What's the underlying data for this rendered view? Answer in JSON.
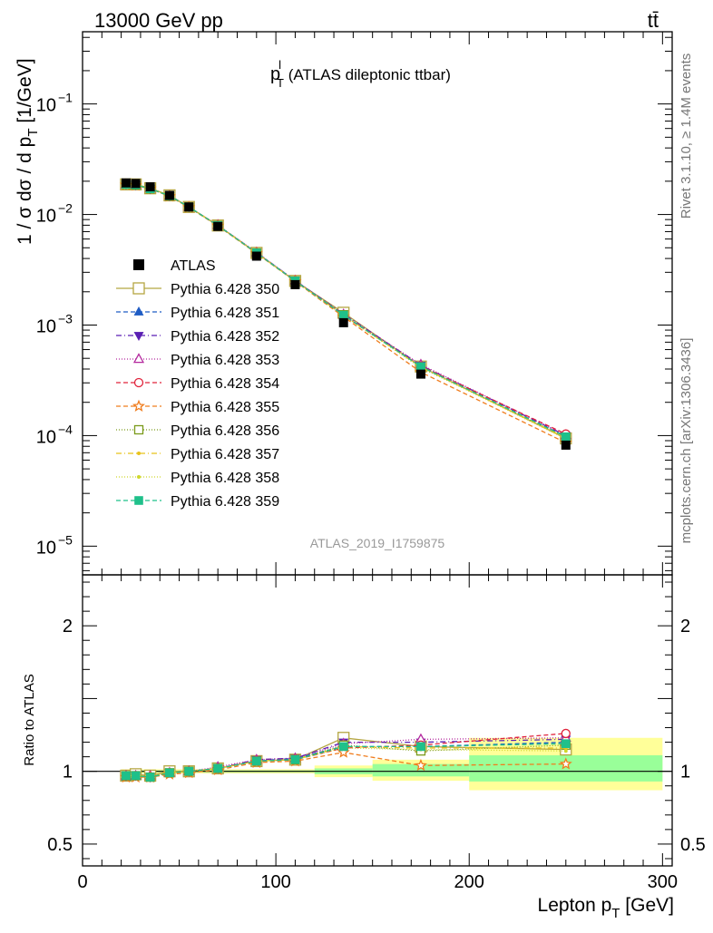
{
  "header": {
    "left": "13000 GeV pp",
    "right": "tt̄"
  },
  "side_labels": {
    "rivet": "Rivet 3.1.10, ≥ 1.4M events",
    "mcplots": "mcplots.cern.ch [arXiv:1306.3436]"
  },
  "plot_title": {
    "main": "p",
    "sup": "l",
    "sub": "T",
    "rest": " (ATLAS dileptonic ttbar)"
  },
  "watermark": "ATLAS_2019_I1759875",
  "axes": {
    "ylabel_main": "1 / σ  dσ / d p",
    "ylabel_sub": "T",
    "ylabel_unit": " [1/GeV]",
    "ylabel_ratio": "Ratio to ATLAS",
    "xlabel_main": "Lepton p",
    "xlabel_sub": "T",
    "xlabel_unit": " [GeV]"
  },
  "colors": {
    "data": "#000000",
    "band_inner": "#99ff99",
    "band_outer": "#ffff99"
  },
  "chart_data": [
    {
      "type": "line",
      "scale": "log",
      "x": [
        22.5,
        27.5,
        35,
        45,
        55,
        70,
        90,
        110,
        135,
        175,
        250
      ],
      "xlim": [
        0,
        305
      ],
      "ylim": [
        5.5e-06,
        0.45
      ],
      "x_ticks": [
        0,
        100,
        200,
        300
      ],
      "y_ticks": [
        {
          "value": 0.1,
          "base": "10",
          "exp": "−1"
        },
        {
          "value": 0.01,
          "base": "10",
          "exp": "−2"
        },
        {
          "value": 0.001,
          "base": "10",
          "exp": "−3"
        },
        {
          "value": 0.0001,
          "base": "10",
          "exp": "−4"
        },
        {
          "value": 1e-05,
          "base": "10",
          "exp": "−5"
        }
      ],
      "data": {
        "name": "ATLAS",
        "values": [
          0.0193,
          0.0191,
          0.0178,
          0.0149,
          0.0117,
          0.0078,
          0.0042,
          0.00232,
          0.00105,
          0.00036,
          8.2e-05
        ]
      },
      "series": [
        {
          "name": "Pythia 6.428 350",
          "color": "#b5a642",
          "dash": "",
          "marker": "open-square",
          "ratio": [
            0.97,
            0.98,
            0.97,
            1.0,
            1.0,
            1.02,
            1.07,
            1.08,
            1.23,
            1.17,
            1.15
          ]
        },
        {
          "name": "Pythia 6.428 351",
          "color": "#1f5cc4",
          "dash": "5,3",
          "marker": "triangle-up",
          "ratio": [
            0.96,
            0.97,
            0.96,
            0.99,
            1.0,
            1.02,
            1.07,
            1.09,
            1.17,
            1.17,
            1.2
          ]
        },
        {
          "name": "Pythia 6.428 352",
          "color": "#5a1fb3",
          "dash": "6,3,1,3",
          "marker": "triangle-down",
          "ratio": [
            0.97,
            0.97,
            0.96,
            0.99,
            1.0,
            1.02,
            1.08,
            1.09,
            1.2,
            1.2,
            1.22
          ]
        },
        {
          "name": "Pythia 6.428 353",
          "color": "#b4289e",
          "dash": "1,2",
          "marker": "open-triangle-up",
          "ratio": [
            0.97,
            0.97,
            0.97,
            0.99,
            1.0,
            1.03,
            1.08,
            1.09,
            1.19,
            1.22,
            1.23
          ]
        },
        {
          "name": "Pythia 6.428 354",
          "color": "#e0233b",
          "dash": "5,3",
          "marker": "open-circle",
          "ratio": [
            0.97,
            0.97,
            0.96,
            0.99,
            1.0,
            1.02,
            1.07,
            1.08,
            1.16,
            1.18,
            1.26
          ]
        },
        {
          "name": "Pythia 6.428 355",
          "color": "#f07d1e",
          "dash": "5,3",
          "marker": "open-star",
          "ratio": [
            0.96,
            0.96,
            0.96,
            0.98,
            0.99,
            1.01,
            1.06,
            1.07,
            1.13,
            1.04,
            1.05
          ]
        },
        {
          "name": "Pythia 6.428 356",
          "color": "#7a9a1a",
          "dash": "1,2",
          "marker": "open-square",
          "ratio": [
            0.97,
            0.97,
            0.96,
            0.99,
            1.0,
            1.02,
            1.07,
            1.08,
            1.18,
            1.14,
            1.18
          ]
        },
        {
          "name": "Pythia 6.428 357",
          "color": "#e8c21a",
          "dash": "6,3,1,3",
          "marker": "dot",
          "ratio": [
            0.97,
            0.97,
            0.97,
            0.99,
            1.0,
            1.02,
            1.07,
            1.08,
            1.17,
            1.16,
            1.16
          ]
        },
        {
          "name": "Pythia 6.428 358",
          "color": "#cfd82a",
          "dash": "1,2",
          "marker": "dot",
          "ratio": [
            0.97,
            0.97,
            0.97,
            0.99,
            1.0,
            1.02,
            1.07,
            1.08,
            1.16,
            1.15,
            1.14
          ]
        },
        {
          "name": "Pythia 6.428 359",
          "color": "#1fc08a",
          "dash": "5,3",
          "marker": "square",
          "ratio": [
            0.97,
            0.97,
            0.96,
            0.99,
            1.0,
            1.02,
            1.07,
            1.08,
            1.17,
            1.17,
            1.19
          ]
        }
      ],
      "legend": "left-center"
    },
    {
      "type": "line",
      "name": "ratio",
      "ylim": [
        0.35,
        2.35
      ],
      "y_ticks": [
        {
          "value": 0.5,
          "label": "0.5"
        },
        {
          "value": 1,
          "label": "1"
        },
        {
          "value": 2,
          "label": "2"
        }
      ],
      "ref": 1.0,
      "bands": [
        {
          "x0": 20,
          "x1": 120,
          "inner": [
            0.994,
            1.006
          ],
          "outer": [
            0.986,
            1.014
          ]
        },
        {
          "x0": 120,
          "x1": 150,
          "inner": [
            0.98,
            1.02
          ],
          "outer": [
            0.96,
            1.04
          ]
        },
        {
          "x0": 150,
          "x1": 200,
          "inner": [
            0.965,
            1.05
          ],
          "outer": [
            0.935,
            1.08
          ]
        },
        {
          "x0": 200,
          "x1": 300,
          "inner": [
            0.93,
            1.11
          ],
          "outer": [
            0.87,
            1.23
          ]
        }
      ]
    }
  ]
}
